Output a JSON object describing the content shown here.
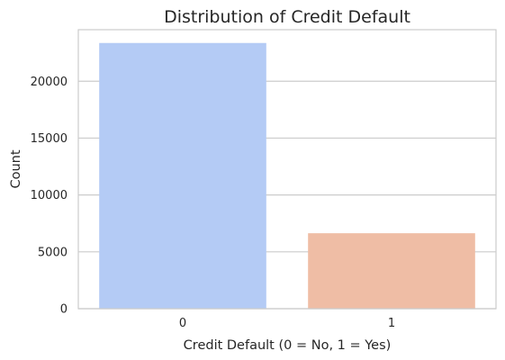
{
  "chart_data": {
    "type": "bar",
    "title": "Distribution of Credit Default",
    "xlabel": "Credit Default (0 = No, 1 = Yes)",
    "ylabel": "Count",
    "categories": [
      "0",
      "1"
    ],
    "values": [
      23364,
      6636
    ],
    "ylim": [
      0,
      24532
    ],
    "yticks": [
      0,
      5000,
      10000,
      15000,
      20000
    ],
    "ytick_labels": [
      "0",
      "5000",
      "10000",
      "15000",
      "20000"
    ],
    "grid": true,
    "bar_colors": [
      "#b4cbf5",
      "#efbda5"
    ],
    "grid_color": "#cccccc"
  }
}
